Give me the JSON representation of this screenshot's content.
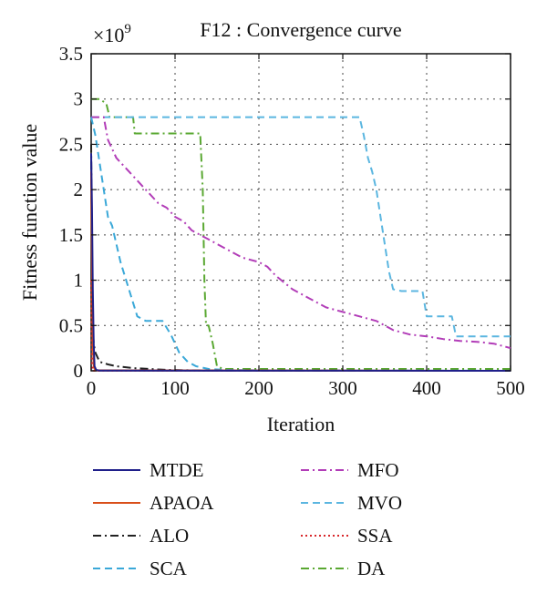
{
  "chart_data": {
    "type": "line",
    "title": "F12 : Convergence curve",
    "xlabel": "Iteration",
    "ylabel": "Fitness function value",
    "y_multiplier": "×10",
    "y_exponent": "9",
    "xlim": [
      0,
      500
    ],
    "ylim": [
      0,
      3.5
    ],
    "x_ticks": [
      0,
      100,
      200,
      300,
      400,
      500
    ],
    "y_ticks": [
      0,
      0.5,
      1,
      1.5,
      2,
      2.5,
      3,
      3.5
    ],
    "x_tick_labels": [
      "0",
      "100",
      "200",
      "300",
      "400",
      "500"
    ],
    "y_tick_labels": [
      "0",
      "0.5",
      "1",
      "1.5",
      "2",
      "2.5",
      "3",
      "3.5"
    ],
    "grid": true,
    "legend_position": "bottom",
    "series": [
      {
        "name": "MTDE",
        "color": "#1f1f8a",
        "dash": "solid",
        "x": [
          0,
          1,
          2,
          3,
          4,
          6,
          10,
          500
        ],
        "y": [
          2.4,
          1.8,
          0.9,
          0.3,
          0.05,
          0.01,
          0.002,
          0.0
        ]
      },
      {
        "name": "APAOA",
        "color": "#d94f1a",
        "dash": "solid",
        "x": [
          0,
          1,
          2,
          3,
          5,
          500
        ],
        "y": [
          2.2,
          1.2,
          0.3,
          0.05,
          0.005,
          0.0
        ]
      },
      {
        "name": "ALO",
        "color": "#222222",
        "dash": "dashdot",
        "x": [
          0,
          1,
          2,
          3,
          5,
          10,
          20,
          30,
          50,
          70,
          90,
          120,
          160,
          220,
          500
        ],
        "y": [
          2.5,
          1.2,
          0.5,
          0.3,
          0.2,
          0.1,
          0.07,
          0.05,
          0.03,
          0.02,
          0.01,
          0.005,
          0.003,
          0.001,
          0.0
        ]
      },
      {
        "name": "SCA",
        "color": "#3aa8d8",
        "dash": "dashed",
        "x": [
          0,
          5,
          10,
          15,
          20,
          25,
          30,
          35,
          45,
          55,
          65,
          75,
          85,
          95,
          105,
          115,
          125,
          140,
          160,
          200,
          500
        ],
        "y": [
          2.8,
          2.6,
          2.3,
          2.0,
          1.7,
          1.6,
          1.4,
          1.2,
          0.9,
          0.6,
          0.55,
          0.55,
          0.55,
          0.4,
          0.2,
          0.1,
          0.05,
          0.02,
          0.01,
          0.005,
          0.0
        ]
      },
      {
        "name": "MFO",
        "color": "#b23db8",
        "dash": "dashdot",
        "x": [
          0,
          5,
          15,
          20,
          30,
          40,
          50,
          60,
          70,
          80,
          90,
          100,
          110,
          120,
          130,
          140,
          150,
          160,
          180,
          200,
          210,
          220,
          240,
          260,
          280,
          300,
          320,
          340,
          360,
          380,
          400,
          420,
          440,
          460,
          480,
          500
        ],
        "y": [
          2.8,
          2.8,
          2.8,
          2.55,
          2.35,
          2.25,
          2.15,
          2.05,
          1.95,
          1.85,
          1.8,
          1.7,
          1.65,
          1.55,
          1.5,
          1.45,
          1.4,
          1.35,
          1.25,
          1.2,
          1.15,
          1.05,
          0.9,
          0.8,
          0.7,
          0.65,
          0.6,
          0.55,
          0.45,
          0.4,
          0.38,
          0.35,
          0.33,
          0.32,
          0.3,
          0.25
        ]
      },
      {
        "name": "MVO",
        "color": "#5bb6e0",
        "dash": "dashed",
        "x": [
          0,
          2,
          320,
          325,
          330,
          335,
          340,
          345,
          350,
          355,
          360,
          370,
          395,
          400,
          430,
          435,
          500
        ],
        "y": [
          2.8,
          2.8,
          2.8,
          2.6,
          2.35,
          2.2,
          2.0,
          1.7,
          1.4,
          1.1,
          0.9,
          0.88,
          0.88,
          0.6,
          0.6,
          0.38,
          0.38
        ]
      },
      {
        "name": "SSA",
        "color": "#d8272b",
        "dash": "dotted",
        "x": [
          0,
          1,
          2,
          500
        ],
        "y": [
          1.0,
          0.1,
          0.0,
          0.0
        ]
      },
      {
        "name": "DA",
        "color": "#5aa832",
        "dash": "dashdot",
        "x": [
          0,
          10,
          18,
          22,
          50,
          52,
          130,
          133,
          135,
          137,
          140,
          145,
          150,
          155,
          160,
          500
        ],
        "y": [
          3.0,
          3.0,
          2.95,
          2.8,
          2.8,
          2.62,
          2.62,
          2.0,
          1.0,
          0.5,
          0.5,
          0.3,
          0.05,
          0.03,
          0.02,
          0.02
        ]
      }
    ]
  }
}
